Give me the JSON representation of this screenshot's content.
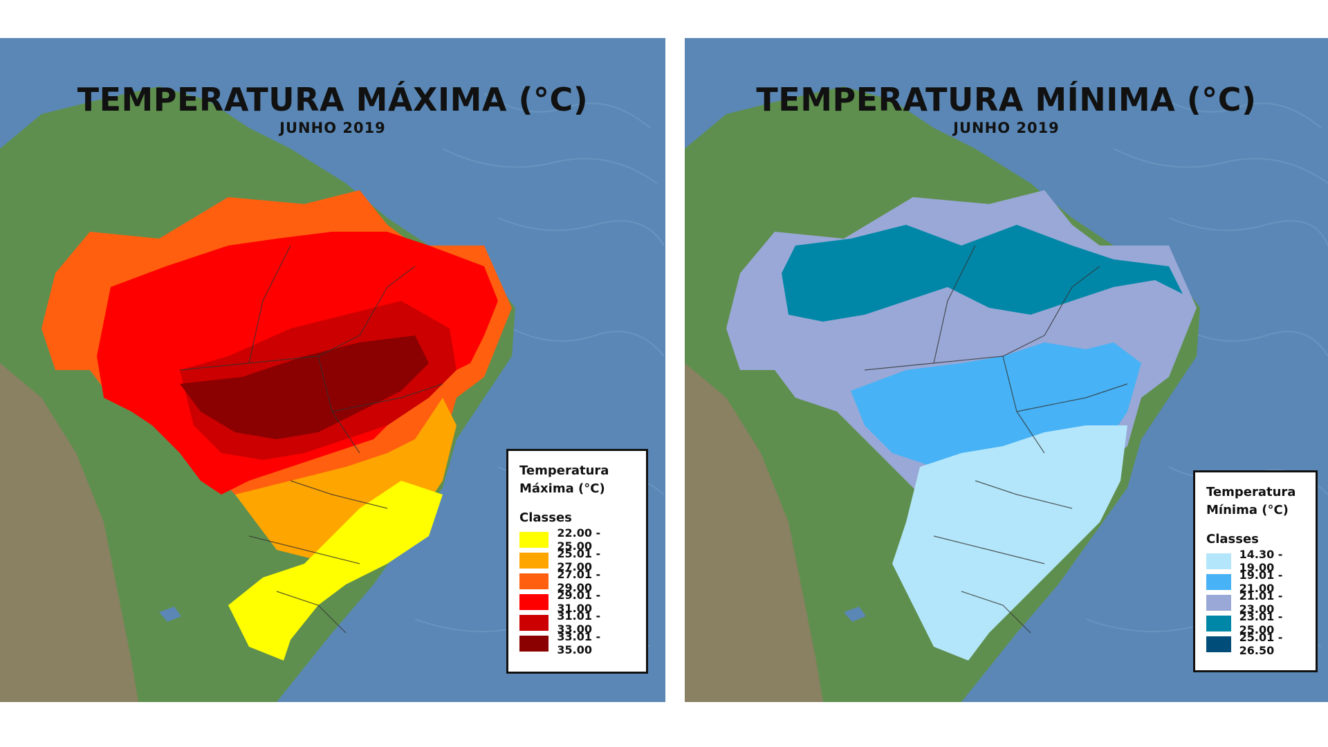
{
  "maps": [
    {
      "title": "TEMPERATURA MÁXIMA (°C)",
      "subtitle": "JUNHO 2019",
      "legend": {
        "title": "Temperatura\nMáxima (°C)",
        "classes_label": "Classes",
        "items": [
          {
            "label": "22.00 - 25.00",
            "color": "#ffff00"
          },
          {
            "label": "25.01 - 27.00",
            "color": "#ffa500"
          },
          {
            "label": "27.01 - 29.00",
            "color": "#ff5f0f"
          },
          {
            "label": "29.01 - 31.00",
            "color": "#ff0000"
          },
          {
            "label": "31.01 - 33.00",
            "color": "#cc0000"
          },
          {
            "label": "33.01 - 35.00",
            "color": "#8b0000"
          }
        ]
      }
    },
    {
      "title": "TEMPERATURA MÍNIMA (°C)",
      "subtitle": "JUNHO 2019",
      "legend": {
        "title": "Temperatura\nMínima (°C)",
        "classes_label": "Classes",
        "items": [
          {
            "label": "14.30 - 19.00",
            "color": "#b3e6fa"
          },
          {
            "label": "19.01 - 21.00",
            "color": "#47b2f5"
          },
          {
            "label": "21.01 - 23.00",
            "color": "#99a8d6"
          },
          {
            "label": "23.01 - 25.00",
            "color": "#0087a8"
          },
          {
            "label": "25.01 - 26.50",
            "color": "#004d7a"
          }
        ]
      }
    }
  ]
}
